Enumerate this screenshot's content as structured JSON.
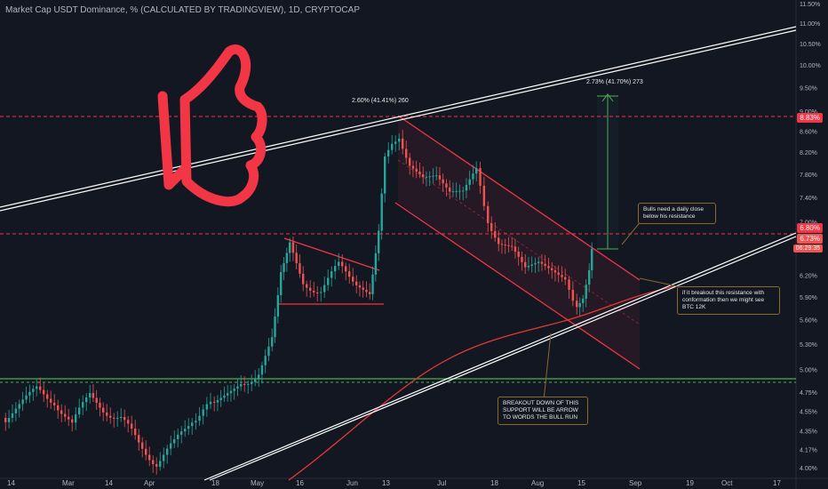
{
  "header": {
    "title": "Market Cap USDT Dominance, % (CALCULATED BY TRADINGVIEW), 1D, CRYPTOCAP"
  },
  "annotations": {
    "pct_left": "2.60% (41.41%) 260",
    "pct_right": "2.73% (41.70%) 273",
    "note_bulls": "Bulls need a daily close below his resistance",
    "note_breakout": "if it breakout this resistance with conformation then we might see BTC 12K",
    "note_breakdown": "BREAKOUT DOWN OF THIS SUPPORT WILL BE ARROW TO WORDS THE BULL RUN"
  },
  "price_tags": {
    "level_red": "8.83%",
    "level_red2": "6.80%",
    "current": "6.73%",
    "countdown": "06:29:35"
  },
  "colors": {
    "background": "#131722",
    "bull": "#26a69a",
    "bear": "#ef5350",
    "channel": "#f23645",
    "trendline": "#ffffff",
    "support_green": "#4caf50",
    "thumb": "#f23645"
  },
  "chart_data": {
    "type": "candlestick",
    "title": "Market Cap USDT Dominance, % (CALCULATED BY TRADINGVIEW), 1D, CRYPTOCAP",
    "y_ticks": [
      "11.50%",
      "11.00%",
      "10.50%",
      "10.00%",
      "9.50%",
      "9.00%",
      "8.60%",
      "8.20%",
      "7.80%",
      "7.40%",
      "7.00%",
      "6.60%",
      "6.20%",
      "5.90%",
      "5.60%",
      "5.30%",
      "5.00%",
      "4.75%",
      "4.55%",
      "4.35%",
      "4.17%",
      "4.00%"
    ],
    "x_ticks": [
      "14",
      "Mar",
      "14",
      "Apr",
      "18",
      "May",
      "16",
      "Jun",
      "13",
      "Jul",
      "18",
      "Aug",
      "15",
      "Sep",
      "19",
      "Oct",
      "17"
    ],
    "ylim": [
      4.0,
      11.5
    ],
    "scale": "log",
    "horizontal_levels": [
      8.83,
      6.8,
      4.85
    ],
    "grid": false
  }
}
